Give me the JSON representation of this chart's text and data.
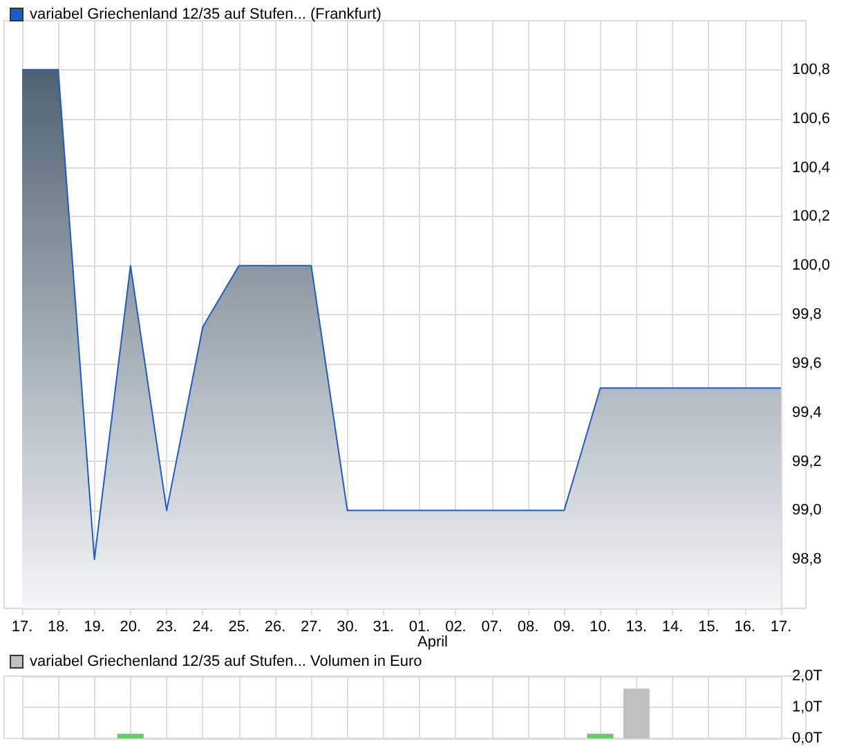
{
  "chart_data": [
    {
      "type": "area",
      "categories": [
        "17.",
        "18.",
        "19.",
        "20.",
        "23.",
        "24.",
        "25.",
        "26.",
        "27.",
        "30.",
        "31.",
        "01.",
        "02.",
        "07.",
        "08.",
        "09.",
        "10.",
        "13.",
        "14.",
        "15.",
        "16.",
        "17."
      ],
      "series": [
        {
          "name": "variabel Griechenland 12/35 auf Stufen... (Frankfurt)",
          "color": "#1f5bc6",
          "values": [
            100.8,
            100.8,
            98.8,
            100.0,
            99.0,
            99.75,
            100.0,
            100.0,
            100.0,
            99.0,
            99.0,
            99.0,
            99.0,
            99.0,
            99.0,
            99.0,
            99.5,
            99.5,
            99.5,
            99.5,
            99.5,
            99.5
          ]
        }
      ],
      "ylim": [
        98.6,
        101.0
      ],
      "yticks": [
        {
          "value": 98.8,
          "label": "98,8"
        },
        {
          "value": 99.0,
          "label": "99,0"
        },
        {
          "value": 99.2,
          "label": "99,2"
        },
        {
          "value": 99.4,
          "label": "99,4"
        },
        {
          "value": 99.6,
          "label": "99,6"
        },
        {
          "value": 99.8,
          "label": "99,8"
        },
        {
          "value": 100.0,
          "label": "100,0"
        },
        {
          "value": 100.2,
          "label": "100,2"
        },
        {
          "value": 100.4,
          "label": "100,4"
        },
        {
          "value": 100.6,
          "label": "100,6"
        },
        {
          "value": 100.8,
          "label": "100,8"
        }
      ],
      "annotations": [
        "April"
      ],
      "grid": true,
      "legend": "top left",
      "marker": "none"
    },
    {
      "type": "bar",
      "categories": [
        "17.",
        "18.",
        "19.",
        "20.",
        "23.",
        "24.",
        "25.",
        "26.",
        "27.",
        "30.",
        "31.",
        "01.",
        "02.",
        "07.",
        "08.",
        "09.",
        "10.",
        "13.",
        "14.",
        "15.",
        "16.",
        "17."
      ],
      "series": [
        {
          "name": "variabel Griechenland 12/35 auf Stufen... Volumen in Euro",
          "color": "#c0c0c0",
          "values": [
            null,
            null,
            null,
            0.15,
            null,
            null,
            null,
            null,
            null,
            null,
            null,
            null,
            null,
            null,
            null,
            null,
            0.15,
            1.6,
            null,
            null,
            null,
            null
          ],
          "colors": [
            null,
            null,
            null,
            "#66cc66",
            null,
            null,
            null,
            null,
            null,
            null,
            null,
            null,
            null,
            null,
            null,
            null,
            "#66cc66",
            "#c0c0c0",
            null,
            null,
            null,
            null
          ]
        }
      ],
      "ylim": [
        0,
        2.0
      ],
      "yticks": [
        {
          "value": 0,
          "label": "0,0T"
        },
        {
          "value": 1.0,
          "label": "1,0T"
        },
        {
          "value": 2.0,
          "label": "2,0T"
        }
      ],
      "tick_labels": "y",
      "grid": true,
      "legend": "top left"
    }
  ]
}
